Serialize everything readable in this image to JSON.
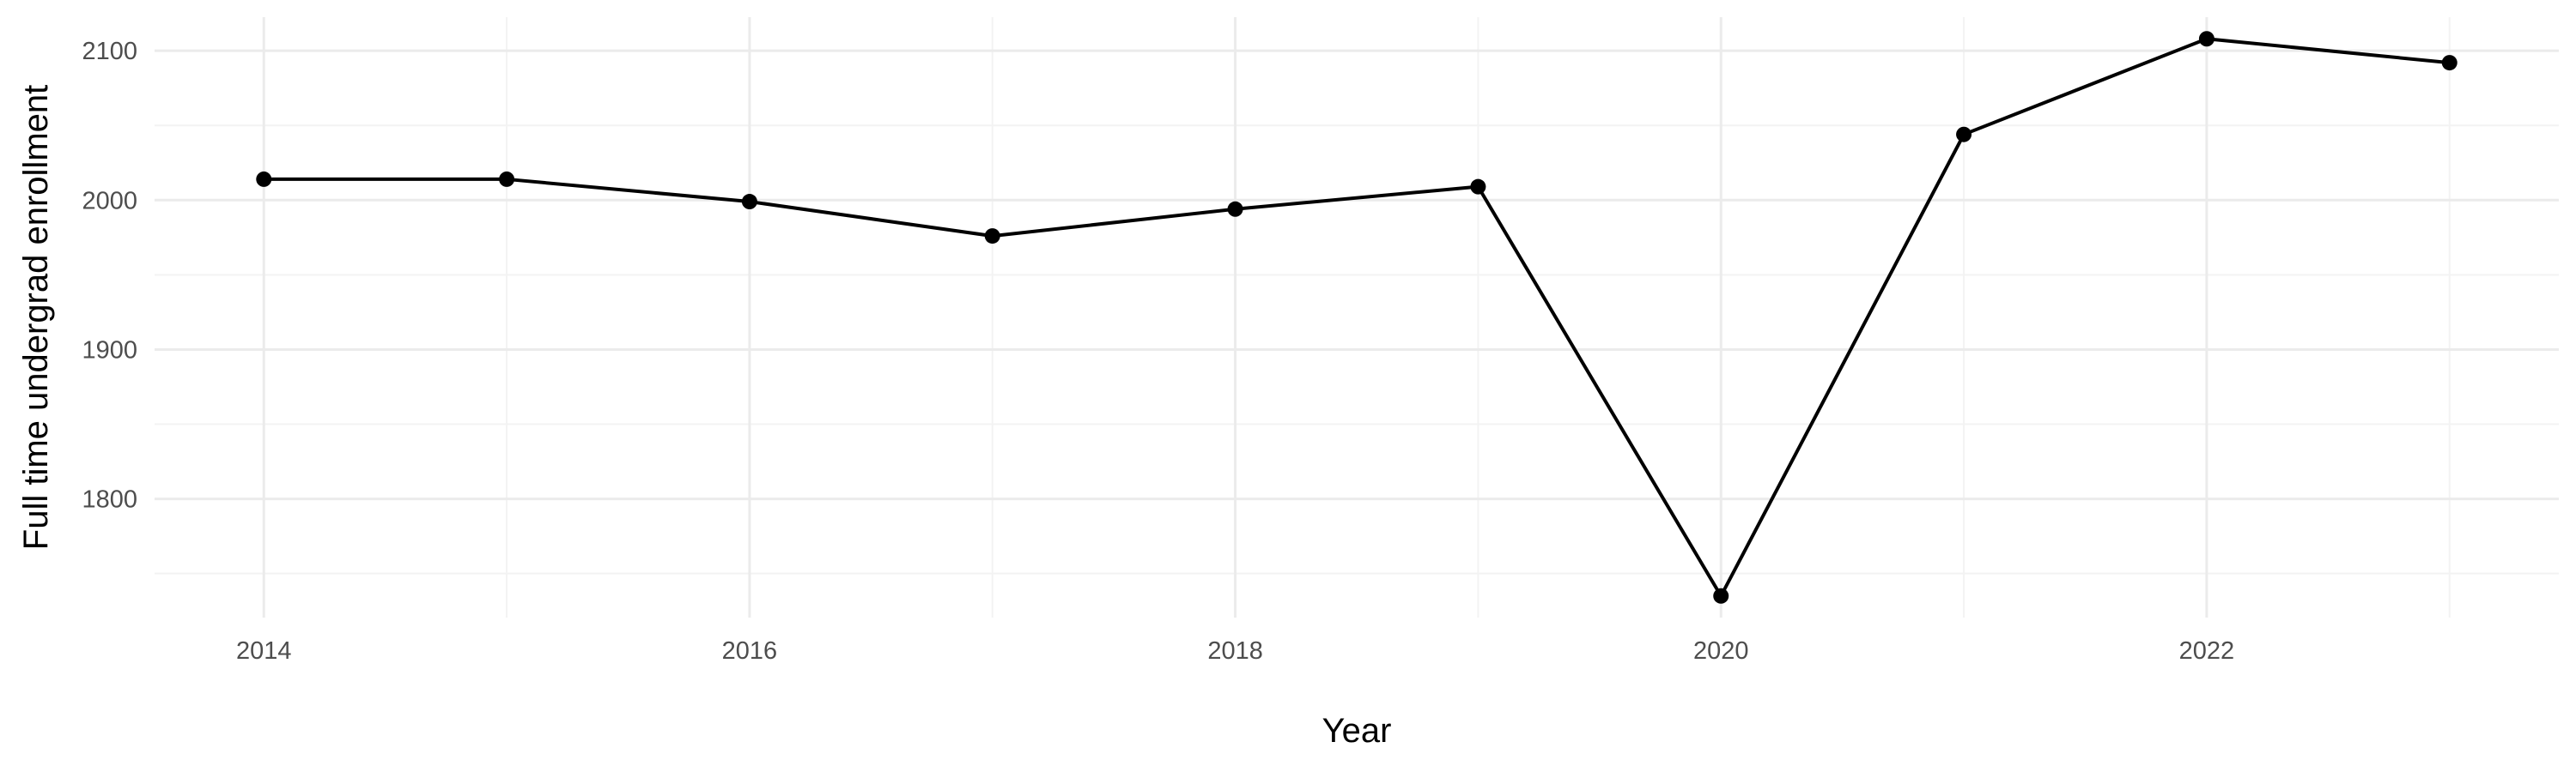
{
  "chart_data": {
    "type": "line",
    "title": "",
    "xlabel": "Year",
    "ylabel": "Full time undergrad enrollment",
    "x": [
      2014,
      2015,
      2016,
      2017,
      2018,
      2019,
      2020,
      2021,
      2022,
      2023
    ],
    "series": [
      {
        "values": [
          2014,
          2014,
          1999,
          1976,
          1994,
          2009,
          1735,
          2044,
          2108,
          2092
        ]
      }
    ],
    "xlim": [
      2013.55,
      2023.45
    ],
    "ylim": [
      1720.5,
      2122.5
    ],
    "x_ticks": [
      2014,
      2016,
      2018,
      2020,
      2022
    ],
    "x_tick_labels": [
      "2014",
      "2016",
      "2018",
      "2020",
      "2022"
    ],
    "y_ticks": [
      1800,
      1900,
      2000,
      2100
    ],
    "y_tick_labels": [
      "1800",
      "1900",
      "2000",
      "2100"
    ],
    "grid": true,
    "legend": "none",
    "colors": {
      "line": "#000000",
      "grid": "#ebebeb",
      "background": "#ffffff",
      "tick_text": "#4d4d4d"
    }
  }
}
